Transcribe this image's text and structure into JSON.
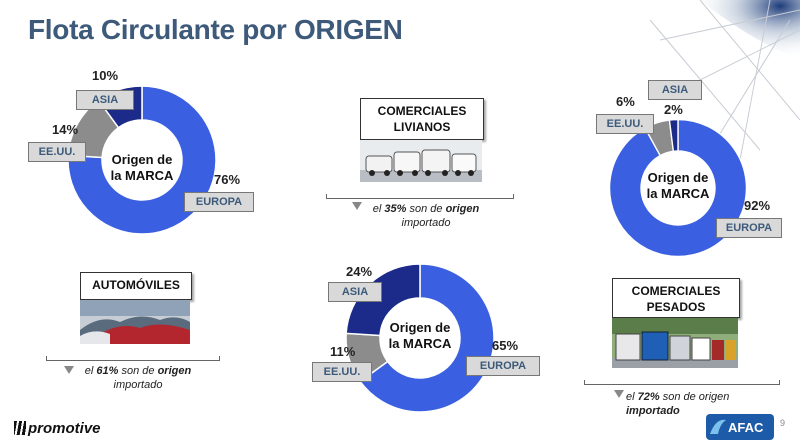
{
  "title": "Flota Circulante por ORIGEN",
  "colors": {
    "europa": "#3a5fe0",
    "eeuu": "#8c8c8c",
    "asia": "#1c2a8a",
    "title": "#3d5a7a"
  },
  "chart_data": [
    {
      "type": "pie",
      "center_label": [
        "Origen de",
        "la MARCA"
      ],
      "slices": [
        {
          "name": "EUROPA",
          "value": 76,
          "label": "76%"
        },
        {
          "name": "EE.UU.",
          "value": 14,
          "label": "14%"
        },
        {
          "name": "ASIA",
          "value": 10,
          "label": "10%"
        }
      ]
    },
    {
      "type": "pie",
      "center_label": [
        "Origen de",
        "la MARCA"
      ],
      "slices": [
        {
          "name": "EUROPA",
          "value": 65,
          "label": "65%"
        },
        {
          "name": "EE.UU.",
          "value": 11,
          "label": "11%"
        },
        {
          "name": "ASIA",
          "value": 24,
          "label": "24%"
        }
      ]
    },
    {
      "type": "pie",
      "center_label": [
        "Origen de",
        "la MARCA"
      ],
      "slices": [
        {
          "name": "EUROPA",
          "value": 92,
          "label": "92%"
        },
        {
          "name": "EE.UU.",
          "value": 6,
          "label": "6%"
        },
        {
          "name": "ASIA",
          "value": 2,
          "label": "2%"
        }
      ]
    }
  ],
  "categories": {
    "automoviles": {
      "label": "AUTOMÓVILES",
      "note_pre": "el ",
      "note_pct": "61%",
      "note_mid": " son de ",
      "note_bold": "origen",
      "note_post": "importado",
      "pct_suffix": ""
    },
    "comerciales_livianos": {
      "label_1": "COMERCIALES",
      "label_2": "LIVIANOS",
      "note_pre": "el ",
      "note_pct": "35%",
      "note_mid": " son de ",
      "note_bold": "origen",
      "note_post": "importado"
    },
    "comerciales_pesados": {
      "label_1": "COMERCIALES",
      "label_2": "PESADOS",
      "note_pre": "el ",
      "note_pct": "72%",
      "note_mid": " son de origen",
      "note_bold": "",
      "note_post": "importado"
    }
  },
  "footer": {
    "logo_left": "promotive",
    "logo_right": "AFAC",
    "page": "9"
  }
}
